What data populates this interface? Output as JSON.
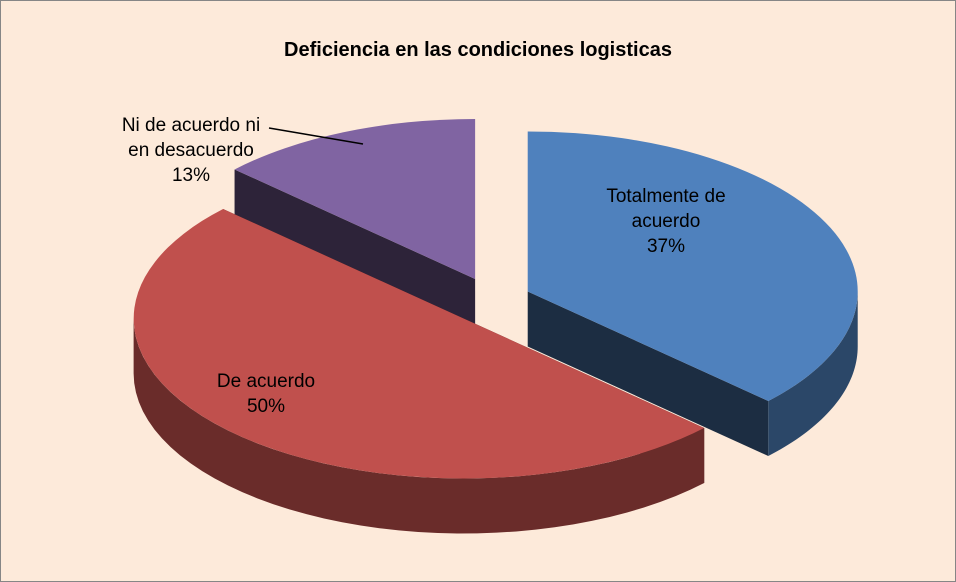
{
  "chart_data": {
    "type": "pie3d",
    "title": "Deficiencia en las condiciones logisticas",
    "categories": [
      "Totalmente de acuerdo",
      "De acuerdo",
      "Ni de acuerdo ni en desacuerdo"
    ],
    "values": [
      37,
      50,
      13
    ],
    "value_labels": [
      "37%",
      "50%",
      "13%"
    ],
    "colors": [
      "#4f81bd",
      "#c0504d",
      "#8064a2"
    ],
    "exploded": true
  }
}
